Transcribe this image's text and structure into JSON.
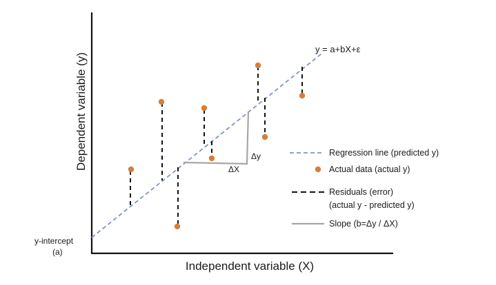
{
  "labels": {
    "equation": "y = a+bX+ε",
    "delta_y": "Δy",
    "delta_x": "ΔX",
    "y_intercept_line1": "y-intercept",
    "y_intercept_line2": "(a)"
  },
  "axes": {
    "xlabel": "Independent variable (X)",
    "ylabel": "Dependent variable (y)"
  },
  "legend": {
    "regression": "Regression line (predicted y)",
    "actual": "Actual data (actual y)",
    "residuals_line1": "Residuals (error)",
    "residuals_line2": "(actual y - predicted y)",
    "slope": "Slope (b=Δy / ΔX)"
  },
  "colors": {
    "regression_line": "#8093c4",
    "data_point": "#d57f3d",
    "residual": "#111111",
    "slope": "#a6a6a6",
    "axis": "#111111"
  }
}
